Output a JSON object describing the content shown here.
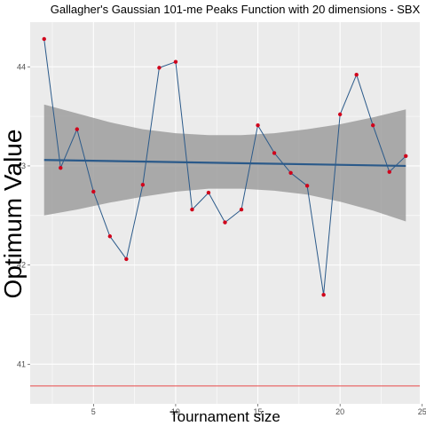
{
  "chart_data": {
    "type": "line",
    "title": "Gallagher's Gaussian 101-me Peaks Function with 20 dimensions -  SBX",
    "xlabel": "Tournament size",
    "ylabel": "Optimum Value",
    "xlim": [
      1.15,
      24.85
    ],
    "ylim": [
      40.6,
      44.45
    ],
    "x_ticks": [
      5,
      10,
      15,
      20,
      25
    ],
    "y_ticks": [
      41,
      42,
      43,
      44
    ],
    "x_tick_labels": [
      "5",
      "10",
      "15",
      "20",
      "25"
    ],
    "y_tick_labels": [
      "41",
      "42",
      "43",
      "44"
    ],
    "grid": true,
    "legend": "none",
    "series": [
      {
        "x": [
          2,
          3,
          4,
          5,
          6,
          7,
          8,
          9,
          10,
          11,
          12,
          13,
          14,
          15,
          16,
          17,
          18,
          19,
          20,
          21,
          22,
          23,
          24
        ],
        "values": [
          44.28,
          42.98,
          43.37,
          42.74,
          42.29,
          42.06,
          42.81,
          43.99,
          44.05,
          42.56,
          42.73,
          42.43,
          42.56,
          43.41,
          43.13,
          42.93,
          42.8,
          41.7,
          43.52,
          43.92,
          43.41,
          42.94,
          43.1
        ]
      }
    ],
    "trend_line": {
      "x": [
        2,
        24
      ],
      "y": [
        43.06,
        43.0
      ]
    },
    "confidence_band": {
      "x": [
        2,
        4,
        6,
        8,
        10,
        12,
        14,
        16,
        18,
        20,
        22,
        24
      ],
      "upper": [
        43.62,
        43.53,
        43.44,
        43.37,
        43.33,
        43.31,
        43.31,
        43.33,
        43.37,
        43.42,
        43.49,
        43.57
      ],
      "lower": [
        42.5,
        42.56,
        42.63,
        42.69,
        42.74,
        42.77,
        42.77,
        42.75,
        42.71,
        42.64,
        42.55,
        42.44
      ]
    },
    "reference_line": {
      "y": 40.78
    },
    "colors": {
      "panel": "#ebebeb",
      "grid": "#ffffff",
      "line": "#2b5a8a",
      "points": "#d0021b",
      "trend": "#2b5a8a",
      "band": "#999999",
      "reference": "#e84a4a"
    }
  }
}
